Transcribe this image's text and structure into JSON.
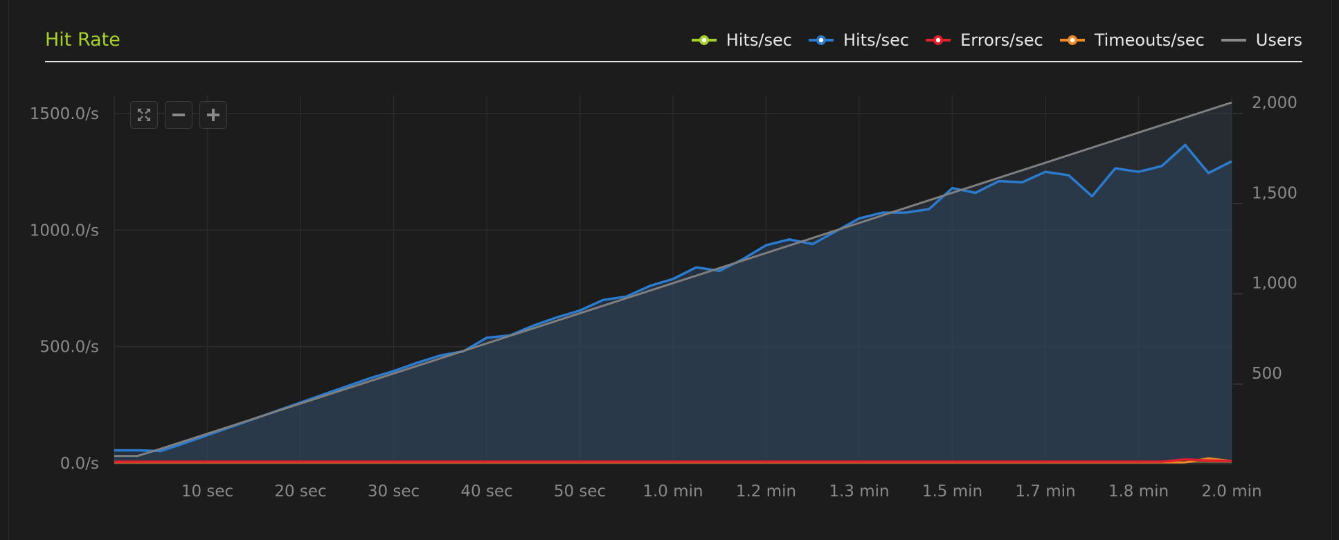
{
  "title": "Hit Rate",
  "legend": [
    {
      "label": "Hits/sec",
      "color": "#a6d02c",
      "marker": true
    },
    {
      "label": "Hits/sec",
      "color": "#2b7bce",
      "marker": true
    },
    {
      "label": "Errors/sec",
      "color": "#e0202a",
      "marker": true
    },
    {
      "label": "Timeouts/sec",
      "color": "#f08a24",
      "marker": true
    },
    {
      "label": "Users",
      "color": "#8a8a8a",
      "marker": false
    }
  ],
  "controls": {
    "fullscreen": "expand-icon",
    "zoom_out": "minus-icon",
    "zoom_in": "plus-icon"
  },
  "chart_data": {
    "type": "line",
    "title": "Hit Rate",
    "x_unit": "seconds",
    "xlim": [
      0,
      120
    ],
    "x_ticks": [
      {
        "x": 10,
        "label": "10 sec"
      },
      {
        "x": 20,
        "label": "20 sec"
      },
      {
        "x": 30,
        "label": "30 sec"
      },
      {
        "x": 40,
        "label": "40 sec"
      },
      {
        "x": 50,
        "label": "50 sec"
      },
      {
        "x": 60,
        "label": "1.0 min"
      },
      {
        "x": 70,
        "label": "1.2 min"
      },
      {
        "x": 80,
        "label": "1.3 min"
      },
      {
        "x": 90,
        "label": "1.5 min"
      },
      {
        "x": 100,
        "label": "1.7 min"
      },
      {
        "x": 110,
        "label": "1.8 min"
      },
      {
        "x": 120,
        "label": "2.0 min"
      }
    ],
    "y_left": {
      "range": [
        0,
        1500
      ],
      "ticks": [
        0,
        500,
        1000,
        1500
      ],
      "tick_labels": [
        "0.0/s",
        "500.0/s",
        "1000.0/s",
        "1500.0/s"
      ]
    },
    "y_right": {
      "range": [
        0,
        2000
      ],
      "ticks": [
        500,
        1000,
        1500,
        2000
      ],
      "tick_labels": [
        "500",
        "1,000",
        "1,500",
        "2,000"
      ]
    },
    "grid": true,
    "legend_position": "top-right",
    "x": [
      0,
      2.5,
      5,
      7.5,
      10,
      12.5,
      15,
      17.5,
      20,
      22.5,
      25,
      27.5,
      30,
      32.5,
      35,
      37.5,
      40,
      42.5,
      45,
      47.5,
      50,
      52.5,
      55,
      57.5,
      60,
      62.5,
      65,
      67.5,
      70,
      72.5,
      75,
      77.5,
      80,
      82.5,
      85,
      87.5,
      90,
      92.5,
      95,
      97.5,
      100,
      102.5,
      105,
      107.5,
      110,
      112.5,
      115,
      117.5,
      120
    ],
    "series": [
      {
        "name": "Hits/sec",
        "axis": "left",
        "values": [
          55,
          55,
          52,
          85,
          120,
          155,
          190,
          225,
          260,
          295,
          330,
          365,
          395,
          430,
          462,
          480,
          538,
          548,
          590,
          625,
          655,
          700,
          715,
          760,
          790,
          840,
          825,
          875,
          935,
          960,
          940,
          995,
          1050,
          1075,
          1075,
          1090,
          1180,
          1160,
          1210,
          1205,
          1250,
          1235,
          1145,
          1265,
          1250,
          1275,
          1365,
          1245,
          1295
        ]
      },
      {
        "name": "Errors/sec",
        "axis": "left",
        "values": [
          0,
          0,
          0,
          0,
          0,
          0,
          0,
          0,
          0,
          0,
          0,
          0,
          0,
          0,
          0,
          0,
          0,
          0,
          0,
          0,
          0,
          0,
          0,
          0,
          0,
          0,
          0,
          0,
          0,
          0,
          0,
          0,
          0,
          0,
          0,
          0,
          0,
          0,
          0,
          0,
          0,
          0,
          0,
          0,
          0,
          0,
          10,
          5,
          4
        ]
      },
      {
        "name": "Timeouts/sec",
        "axis": "left",
        "values": [
          0,
          0,
          0,
          0,
          0,
          0,
          0,
          0,
          0,
          0,
          0,
          0,
          0,
          0,
          0,
          0,
          0,
          0,
          0,
          0,
          0,
          0,
          0,
          0,
          0,
          0,
          0,
          0,
          0,
          0,
          0,
          0,
          0,
          0,
          0,
          0,
          0,
          0,
          0,
          0,
          0,
          0,
          0,
          0,
          0,
          0,
          0,
          18,
          6
        ]
      },
      {
        "name": "Users",
        "axis": "right",
        "x": [
          0,
          2.5,
          5,
          120
        ],
        "values": [
          40,
          40,
          80,
          2000
        ]
      }
    ]
  }
}
